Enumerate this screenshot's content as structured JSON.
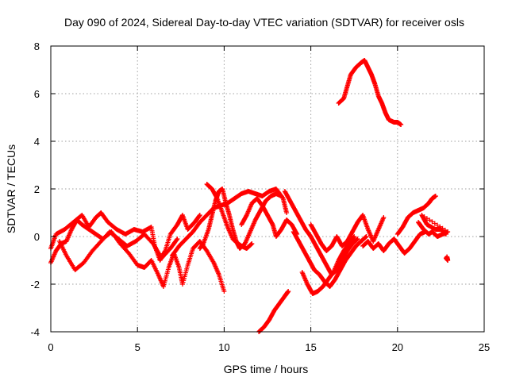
{
  "chart_data": {
    "type": "scatter",
    "title": "Day 090 of 2024, Sidereal Day-to-day VTEC variation (SDTVAR) for receiver osls",
    "xlabel": "GPS time / hours",
    "ylabel": "SDTVAR / TECUs",
    "xlim": [
      0,
      25
    ],
    "ylim": [
      -4,
      8
    ],
    "xticks": [
      "0",
      "5",
      "10",
      "15",
      "20",
      "25"
    ],
    "yticks": [
      "-4",
      "-2",
      "0",
      "2",
      "4",
      "6",
      "8"
    ],
    "grid": true,
    "marker": "+",
    "color": "#ff0000",
    "series": [
      {
        "name": "track-1",
        "points": [
          [
            0,
            -0.5
          ],
          [
            0.3,
            0.1
          ],
          [
            0.8,
            0.3
          ],
          [
            1.3,
            0.6
          ],
          [
            1.8,
            0.9
          ],
          [
            2.2,
            0.4
          ],
          [
            2.6,
            0.8
          ],
          [
            2.9,
            1.0
          ],
          [
            3.3,
            0.6
          ],
          [
            3.8,
            0.3
          ],
          [
            4.3,
            0.1
          ],
          [
            4.8,
            0.3
          ],
          [
            5.3,
            0.2
          ],
          [
            5.8,
            0.4
          ],
          [
            6.0,
            -0.4
          ],
          [
            6.3,
            -1.0
          ],
          [
            6.6,
            -0.6
          ],
          [
            6.9,
            0.1
          ],
          [
            7.3,
            0.5
          ],
          [
            7.6,
            0.9
          ],
          [
            7.9,
            0.3
          ],
          [
            8.3,
            0.6
          ],
          [
            8.6,
            0.9
          ]
        ]
      },
      {
        "name": "track-2",
        "points": [
          [
            0,
            -1.1
          ],
          [
            0.3,
            -0.6
          ],
          [
            0.6,
            -0.3
          ],
          [
            0.9,
            -0.2
          ],
          [
            1.2,
            0.3
          ],
          [
            1.5,
            0.7
          ],
          [
            1.8,
            0.5
          ],
          [
            2.2,
            0.3
          ],
          [
            2.6,
            0.1
          ],
          [
            3.0,
            -0.1
          ],
          [
            3.5,
            0.2
          ],
          [
            4.0,
            -0.3
          ],
          [
            4.5,
            -0.7
          ],
          [
            5.0,
            -1.2
          ],
          [
            5.4,
            -1.3
          ],
          [
            5.8,
            -1.0
          ],
          [
            6.2,
            -1.6
          ],
          [
            6.5,
            -2.1
          ],
          [
            6.8,
            -1.3
          ],
          [
            7.1,
            -0.7
          ],
          [
            7.4,
            -1.3
          ],
          [
            7.6,
            -2.0
          ],
          [
            7.9,
            -1.2
          ],
          [
            8.2,
            -0.5
          ],
          [
            8.6,
            -0.2
          ],
          [
            9.0,
            -0.6
          ],
          [
            9.4,
            -1.1
          ],
          [
            9.7,
            -1.6
          ],
          [
            10.0,
            -2.3
          ]
        ]
      },
      {
        "name": "track-3",
        "points": [
          [
            0.5,
            -0.2
          ],
          [
            0.9,
            -0.8
          ],
          [
            1.4,
            -1.4
          ],
          [
            1.9,
            -1.1
          ],
          [
            2.4,
            -0.6
          ],
          [
            2.9,
            -0.2
          ],
          [
            3.4,
            0.2
          ],
          [
            3.9,
            -0.1
          ],
          [
            4.4,
            -0.4
          ],
          [
            4.9,
            -0.2
          ],
          [
            5.4,
            0.1
          ],
          [
            5.9,
            -0.3
          ],
          [
            6.4,
            -0.9
          ],
          [
            6.9,
            -0.5
          ],
          [
            7.3,
            -0.1
          ]
        ]
      },
      {
        "name": "track-4",
        "points": [
          [
            8.6,
            -0.5
          ],
          [
            8.8,
            -0.3
          ],
          [
            9.1,
            0.3
          ],
          [
            9.3,
            0.9
          ],
          [
            9.5,
            1.5
          ],
          [
            9.7,
            1.9
          ],
          [
            9.9,
            2.0
          ],
          [
            10.1,
            1.4
          ],
          [
            10.3,
            0.9
          ],
          [
            10.5,
            0.3
          ],
          [
            10.7,
            -0.2
          ],
          [
            10.9,
            -0.5
          ],
          [
            11.2,
            -0.3
          ],
          [
            11.5,
            0.2
          ],
          [
            11.8,
            0.7
          ],
          [
            12.1,
            1.1
          ],
          [
            12.4,
            1.5
          ],
          [
            12.7,
            1.7
          ],
          [
            13.0,
            1.8
          ],
          [
            13.3,
            1.7
          ]
        ]
      },
      {
        "name": "track-5",
        "points": [
          [
            9.0,
            2.2
          ],
          [
            9.3,
            2.0
          ],
          [
            9.6,
            1.6
          ],
          [
            9.9,
            1.0
          ],
          [
            10.2,
            0.4
          ],
          [
            10.5,
            -0.1
          ],
          [
            10.8,
            -0.3
          ],
          [
            11.0,
            -0.4
          ],
          [
            11.3,
            -0.5
          ],
          [
            11.6,
            -0.3
          ]
        ]
      },
      {
        "name": "track-6",
        "points": [
          [
            7.0,
            -0.8
          ],
          [
            7.4,
            -0.4
          ],
          [
            7.8,
            -0.1
          ],
          [
            8.2,
            0.2
          ],
          [
            8.6,
            0.6
          ],
          [
            9.0,
            0.9
          ],
          [
            9.4,
            1.2
          ],
          [
            9.8,
            1.3
          ],
          [
            10.2,
            1.4
          ],
          [
            10.6,
            1.6
          ],
          [
            11.0,
            1.8
          ],
          [
            11.4,
            1.9
          ],
          [
            11.8,
            1.8
          ],
          [
            12.2,
            1.7
          ],
          [
            12.6,
            1.9
          ],
          [
            13.0,
            2.0
          ],
          [
            13.4,
            1.6
          ],
          [
            13.6,
            1.0
          ]
        ]
      },
      {
        "name": "track-7",
        "points": [
          [
            11.0,
            0.5
          ],
          [
            11.3,
            0.9
          ],
          [
            11.6,
            1.4
          ],
          [
            11.9,
            1.6
          ],
          [
            12.2,
            1.3
          ],
          [
            12.5,
            0.9
          ],
          [
            12.8,
            0.5
          ],
          [
            13.0,
            0.0
          ],
          [
            13.3,
            0.3
          ],
          [
            13.6,
            0.7
          ],
          [
            13.9,
            0.5
          ],
          [
            14.2,
            0.1
          ]
        ]
      },
      {
        "name": "track-8",
        "points": [
          [
            12.0,
            -4.0
          ],
          [
            12.3,
            -3.8
          ],
          [
            12.6,
            -3.5
          ],
          [
            12.9,
            -3.1
          ],
          [
            13.2,
            -2.8
          ],
          [
            13.5,
            -2.5
          ],
          [
            13.7,
            -2.3
          ]
        ]
      },
      {
        "name": "track-9",
        "points": [
          [
            13.5,
            1.9
          ],
          [
            13.8,
            1.5
          ],
          [
            14.1,
            1.1
          ],
          [
            14.4,
            0.7
          ],
          [
            14.7,
            0.3
          ],
          [
            15.0,
            0.0
          ],
          [
            15.3,
            -0.4
          ],
          [
            15.6,
            -0.8
          ],
          [
            15.9,
            -1.2
          ],
          [
            16.2,
            -1.6
          ],
          [
            16.5,
            -1.4
          ],
          [
            16.8,
            -1.0
          ],
          [
            17.1,
            -0.6
          ],
          [
            17.4,
            -0.3
          ],
          [
            17.7,
            -0.1
          ]
        ]
      },
      {
        "name": "track-10",
        "points": [
          [
            14.0,
            0.2
          ],
          [
            14.3,
            -0.2
          ],
          [
            14.6,
            -0.6
          ],
          [
            14.9,
            -1.0
          ],
          [
            15.2,
            -1.4
          ],
          [
            15.5,
            -1.6
          ],
          [
            15.8,
            -1.9
          ],
          [
            16.1,
            -2.1
          ],
          [
            16.4,
            -1.8
          ],
          [
            16.7,
            -1.4
          ],
          [
            17.0,
            -1.0
          ],
          [
            17.3,
            -0.7
          ],
          [
            17.6,
            -0.4
          ],
          [
            17.9,
            -0.2
          ],
          [
            18.2,
            0.0
          ]
        ]
      },
      {
        "name": "track-11",
        "points": [
          [
            14.5,
            -1.5
          ],
          [
            14.8,
            -2.0
          ],
          [
            15.1,
            -2.4
          ],
          [
            15.4,
            -2.3
          ],
          [
            15.7,
            -2.1
          ],
          [
            16.0,
            -1.8
          ],
          [
            16.3,
            -1.5
          ],
          [
            16.6,
            -1.0
          ],
          [
            16.9,
            -0.6
          ],
          [
            17.2,
            -0.3
          ],
          [
            17.5,
            0.0
          ]
        ]
      },
      {
        "name": "track-12",
        "points": [
          [
            15.0,
            0.5
          ],
          [
            15.3,
            0.1
          ],
          [
            15.6,
            -0.3
          ],
          [
            15.9,
            -0.6
          ],
          [
            16.2,
            -0.4
          ],
          [
            16.5,
            0.0
          ],
          [
            16.8,
            -0.4
          ],
          [
            17.1,
            -0.2
          ],
          [
            17.4,
            0.2
          ],
          [
            17.7,
            0.6
          ],
          [
            18.0,
            0.9
          ],
          [
            18.3,
            0.3
          ],
          [
            18.6,
            -0.2
          ],
          [
            18.9,
            0.3
          ],
          [
            19.2,
            0.8
          ]
        ]
      },
      {
        "name": "track-13",
        "points": [
          [
            16.6,
            5.6
          ],
          [
            16.9,
            5.8
          ],
          [
            17.1,
            6.3
          ],
          [
            17.3,
            6.8
          ],
          [
            17.6,
            7.1
          ],
          [
            17.9,
            7.3
          ],
          [
            18.1,
            7.4
          ],
          [
            18.3,
            7.1
          ],
          [
            18.5,
            6.8
          ],
          [
            18.7,
            6.4
          ],
          [
            18.9,
            5.9
          ],
          [
            19.1,
            5.6
          ],
          [
            19.3,
            5.2
          ],
          [
            19.5,
            4.9
          ],
          [
            19.8,
            4.8
          ],
          [
            20.0,
            4.8
          ],
          [
            20.2,
            4.7
          ]
        ]
      },
      {
        "name": "track-14",
        "points": [
          [
            18.0,
            -0.4
          ],
          [
            18.3,
            -0.2
          ],
          [
            18.6,
            -0.5
          ],
          [
            18.9,
            -0.3
          ],
          [
            19.2,
            -0.6
          ],
          [
            19.5,
            -0.3
          ],
          [
            19.8,
            -0.1
          ],
          [
            20.1,
            -0.4
          ],
          [
            20.4,
            -0.7
          ],
          [
            20.7,
            -0.5
          ],
          [
            21.0,
            -0.2
          ],
          [
            21.3,
            0.1
          ],
          [
            21.6,
            0.2
          ]
        ]
      },
      {
        "name": "track-15",
        "points": [
          [
            20.0,
            0.1
          ],
          [
            20.3,
            0.4
          ],
          [
            20.6,
            0.8
          ],
          [
            20.9,
            1.0
          ],
          [
            21.2,
            1.1
          ],
          [
            21.5,
            1.2
          ],
          [
            21.8,
            1.4
          ],
          [
            22.0,
            1.6
          ],
          [
            22.2,
            1.7
          ]
        ]
      },
      {
        "name": "track-16",
        "points": [
          [
            21.2,
            0.6
          ],
          [
            21.5,
            0.3
          ],
          [
            21.8,
            0.1
          ],
          [
            22.0,
            0.2
          ],
          [
            22.3,
            0.0
          ],
          [
            22.6,
            0.1
          ],
          [
            22.9,
            0.2
          ],
          [
            21.4,
            0.9
          ],
          [
            21.7,
            0.5
          ],
          [
            22.2,
            0.3
          ],
          [
            22.5,
            0.3
          ],
          [
            22.8,
            0.1
          ]
        ]
      },
      {
        "name": "track-17",
        "points": [
          [
            22.8,
            -0.9
          ],
          [
            22.9,
            -1.0
          ],
          [
            22.85,
            -0.85
          ]
        ]
      }
    ]
  }
}
